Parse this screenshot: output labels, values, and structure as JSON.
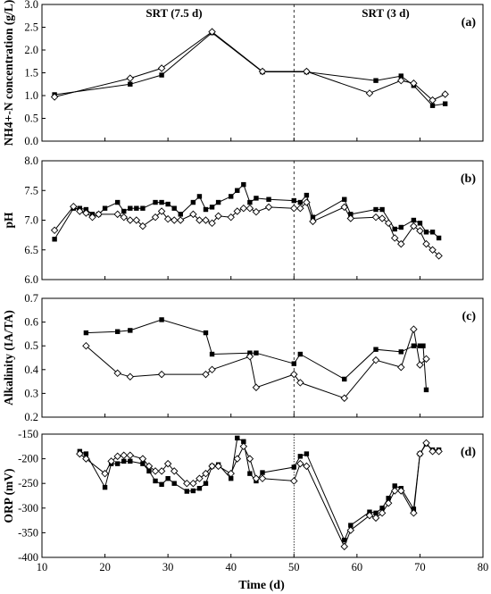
{
  "figure": {
    "xlabel": "Time (d)",
    "xlim": [
      10,
      80
    ],
    "xticks": [
      10,
      20,
      30,
      40,
      50,
      60,
      70,
      80
    ],
    "divider_x": 50,
    "header": {
      "left": "SRT (7.5 d)",
      "right": "SRT (3 d)"
    }
  },
  "chart_data": [
    {
      "type": "line",
      "panel_label": "(a)",
      "ylabel": "NH4+-N concentration (g/L)",
      "ylim": [
        0.0,
        3.0
      ],
      "yticks": [
        "0.0",
        "0.5",
        "1.0",
        "1.5",
        "2.0",
        "2.5",
        "3.0"
      ],
      "series": [
        {
          "marker": "filled-square",
          "x": [
            12,
            24,
            29,
            37,
            45,
            52,
            63,
            67,
            69,
            72,
            74
          ],
          "y": [
            1.02,
            1.25,
            1.45,
            2.38,
            1.52,
            1.52,
            1.33,
            1.43,
            1.22,
            0.78,
            0.82
          ]
        },
        {
          "marker": "open-diamond",
          "x": [
            12,
            24,
            29,
            37,
            45,
            52,
            62,
            67,
            69,
            72,
            74
          ],
          "y": [
            0.97,
            1.38,
            1.6,
            2.4,
            1.53,
            1.53,
            1.05,
            1.33,
            1.27,
            0.9,
            1.03
          ]
        }
      ]
    },
    {
      "type": "line",
      "panel_label": "(b)",
      "ylabel": "pH",
      "ylim": [
        6.0,
        8.0
      ],
      "yticks": [
        "6.0",
        "6.5",
        "7.0",
        "7.5",
        "8.0"
      ],
      "series": [
        {
          "marker": "filled-square",
          "x": [
            12,
            15,
            16,
            17,
            18,
            19,
            20,
            22,
            23,
            24,
            25,
            26,
            28,
            29,
            30,
            31,
            32,
            34,
            35,
            36,
            37,
            38,
            40,
            41,
            42,
            43,
            44,
            46,
            50,
            51,
            52,
            53,
            58,
            59,
            63,
            64,
            66,
            67,
            69,
            70,
            71,
            72,
            73
          ],
          "y": [
            6.68,
            7.2,
            7.2,
            7.18,
            7.1,
            7.1,
            7.2,
            7.3,
            7.15,
            7.2,
            7.2,
            7.2,
            7.3,
            7.3,
            7.27,
            7.2,
            7.1,
            7.3,
            7.4,
            7.18,
            7.22,
            7.3,
            7.4,
            7.5,
            7.6,
            7.3,
            7.37,
            7.35,
            7.33,
            7.3,
            7.42,
            7.05,
            7.35,
            7.1,
            7.18,
            7.18,
            6.85,
            6.88,
            7.0,
            6.95,
            6.8,
            6.8,
            6.7
          ]
        },
        {
          "marker": "open-diamond",
          "x": [
            12,
            15,
            16,
            17,
            18,
            19,
            22,
            23,
            24,
            25,
            26,
            28,
            29,
            30,
            31,
            32,
            34,
            35,
            36,
            37,
            38,
            40,
            41,
            42,
            43,
            44,
            46,
            50,
            51,
            52,
            53,
            58,
            59,
            63,
            64,
            65,
            66,
            67,
            69,
            70,
            71,
            72,
            73
          ],
          "y": [
            6.83,
            7.23,
            7.15,
            7.12,
            7.05,
            7.1,
            7.1,
            7.05,
            7.0,
            7.0,
            6.9,
            7.05,
            7.15,
            7.02,
            7.0,
            7.0,
            7.1,
            7.0,
            7.0,
            6.95,
            7.07,
            7.05,
            7.15,
            7.2,
            7.2,
            7.14,
            7.22,
            7.2,
            7.2,
            7.3,
            6.98,
            7.22,
            7.03,
            7.05,
            7.03,
            6.95,
            6.7,
            6.6,
            6.9,
            6.82,
            6.6,
            6.5,
            6.4
          ]
        }
      ]
    },
    {
      "type": "line",
      "panel_label": "(c)",
      "ylabel": "Alkalinity (IA/TA)",
      "ylim": [
        0.2,
        0.7
      ],
      "yticks": [
        "0.2",
        "0.3",
        "0.4",
        "0.5",
        "0.6",
        "0.7"
      ],
      "series": [
        {
          "marker": "filled-square",
          "x": [
            17,
            22,
            24,
            29,
            36,
            37,
            43,
            44,
            50,
            51,
            58,
            63,
            67,
            69,
            70,
            70.5,
            71
          ],
          "y": [
            0.555,
            0.56,
            0.565,
            0.61,
            0.555,
            0.465,
            0.47,
            0.47,
            0.425,
            0.465,
            0.36,
            0.485,
            0.475,
            0.5,
            0.5,
            0.5,
            0.315
          ]
        },
        {
          "marker": "open-diamond",
          "x": [
            17,
            22,
            24,
            29,
            36,
            37,
            43,
            44,
            50,
            51,
            58,
            63,
            67,
            69,
            70,
            71
          ],
          "y": [
            0.5,
            0.385,
            0.37,
            0.38,
            0.38,
            0.4,
            0.455,
            0.325,
            0.38,
            0.345,
            0.28,
            0.44,
            0.41,
            0.57,
            0.42,
            0.445
          ]
        }
      ]
    },
    {
      "type": "line",
      "panel_label": "(d)",
      "ylabel": "ORP (mV)",
      "ylim": [
        -400,
        -150
      ],
      "yticks": [
        "-400",
        "-350",
        "-300",
        "-250",
        "-200",
        "-150"
      ],
      "series": [
        {
          "marker": "filled-square",
          "x": [
            16,
            17,
            20,
            21,
            22,
            23,
            24,
            26,
            27,
            28,
            29,
            30,
            31,
            33,
            34,
            35,
            36,
            37,
            38,
            40,
            41,
            42,
            43,
            44,
            45,
            50,
            51,
            52,
            58,
            59,
            62,
            63,
            64,
            65,
            66,
            67,
            69,
            70,
            71,
            72,
            73
          ],
          "y": [
            -185,
            -190,
            -258,
            -210,
            -210,
            -205,
            -205,
            -210,
            -225,
            -245,
            -252,
            -240,
            -250,
            -266,
            -265,
            -260,
            -250,
            -215,
            -212,
            -240,
            -158,
            -165,
            -230,
            -245,
            -228,
            -217,
            -195,
            -190,
            -365,
            -335,
            -308,
            -310,
            -300,
            -280,
            -255,
            -260,
            -302,
            -190,
            -170,
            -182,
            -182
          ]
        },
        {
          "marker": "open-diamond",
          "x": [
            16,
            17,
            20,
            21,
            22,
            23,
            24,
            26,
            27,
            28,
            29,
            30,
            31,
            33,
            34,
            35,
            36,
            37,
            38,
            40,
            41,
            42,
            43,
            44,
            45,
            50,
            51,
            52,
            58,
            59,
            62,
            63,
            64,
            65,
            66,
            67,
            69,
            70,
            71,
            72,
            73
          ],
          "y": [
            -190,
            -200,
            -230,
            -205,
            -195,
            -193,
            -193,
            -200,
            -215,
            -225,
            -225,
            -210,
            -225,
            -250,
            -250,
            -240,
            -230,
            -215,
            -215,
            -230,
            -200,
            -175,
            -200,
            -240,
            -240,
            -245,
            -210,
            -215,
            -378,
            -345,
            -315,
            -320,
            -310,
            -290,
            -265,
            -265,
            -310,
            -190,
            -168,
            -185,
            -185
          ]
        }
      ]
    }
  ]
}
